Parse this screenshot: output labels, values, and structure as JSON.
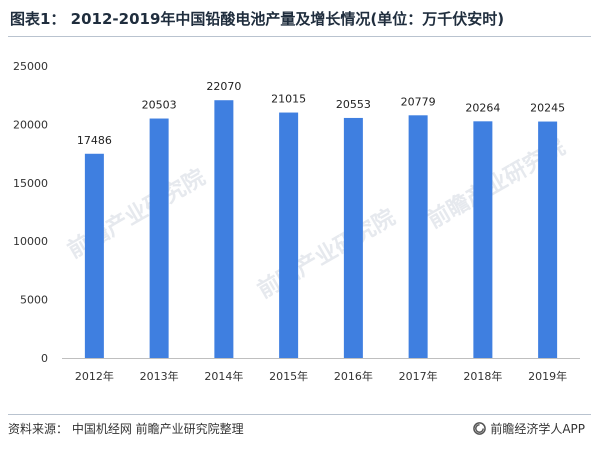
{
  "figure": {
    "title": "图表1： 2012-2019年中国铅酸电池产量及增长情况(单位：万千伏安时)",
    "source": "资料来源：  中国机经网 前瞻产业研究院整理",
    "brand": "前瞻经济学人APP",
    "watermark_text": "前瞻产业研究院"
  },
  "chart_data": {
    "type": "bar",
    "title": "图表1： 2012-2019年中国铅酸电池产量及增长情况(单位：万千伏安时)",
    "categories": [
      "2012年",
      "2013年",
      "2014年",
      "2015年",
      "2016年",
      "2017年",
      "2018年",
      "2019年"
    ],
    "values": [
      17486,
      20503,
      22070,
      21015,
      20553,
      20779,
      20264,
      20245
    ],
    "ylim": [
      0,
      25000
    ],
    "yticks": [
      0,
      5000,
      10000,
      15000,
      20000,
      25000
    ],
    "xlabel": "",
    "ylabel": "",
    "grid": false,
    "legend": "none",
    "bar_color": "#3f7fe0",
    "data_labels": true
  }
}
